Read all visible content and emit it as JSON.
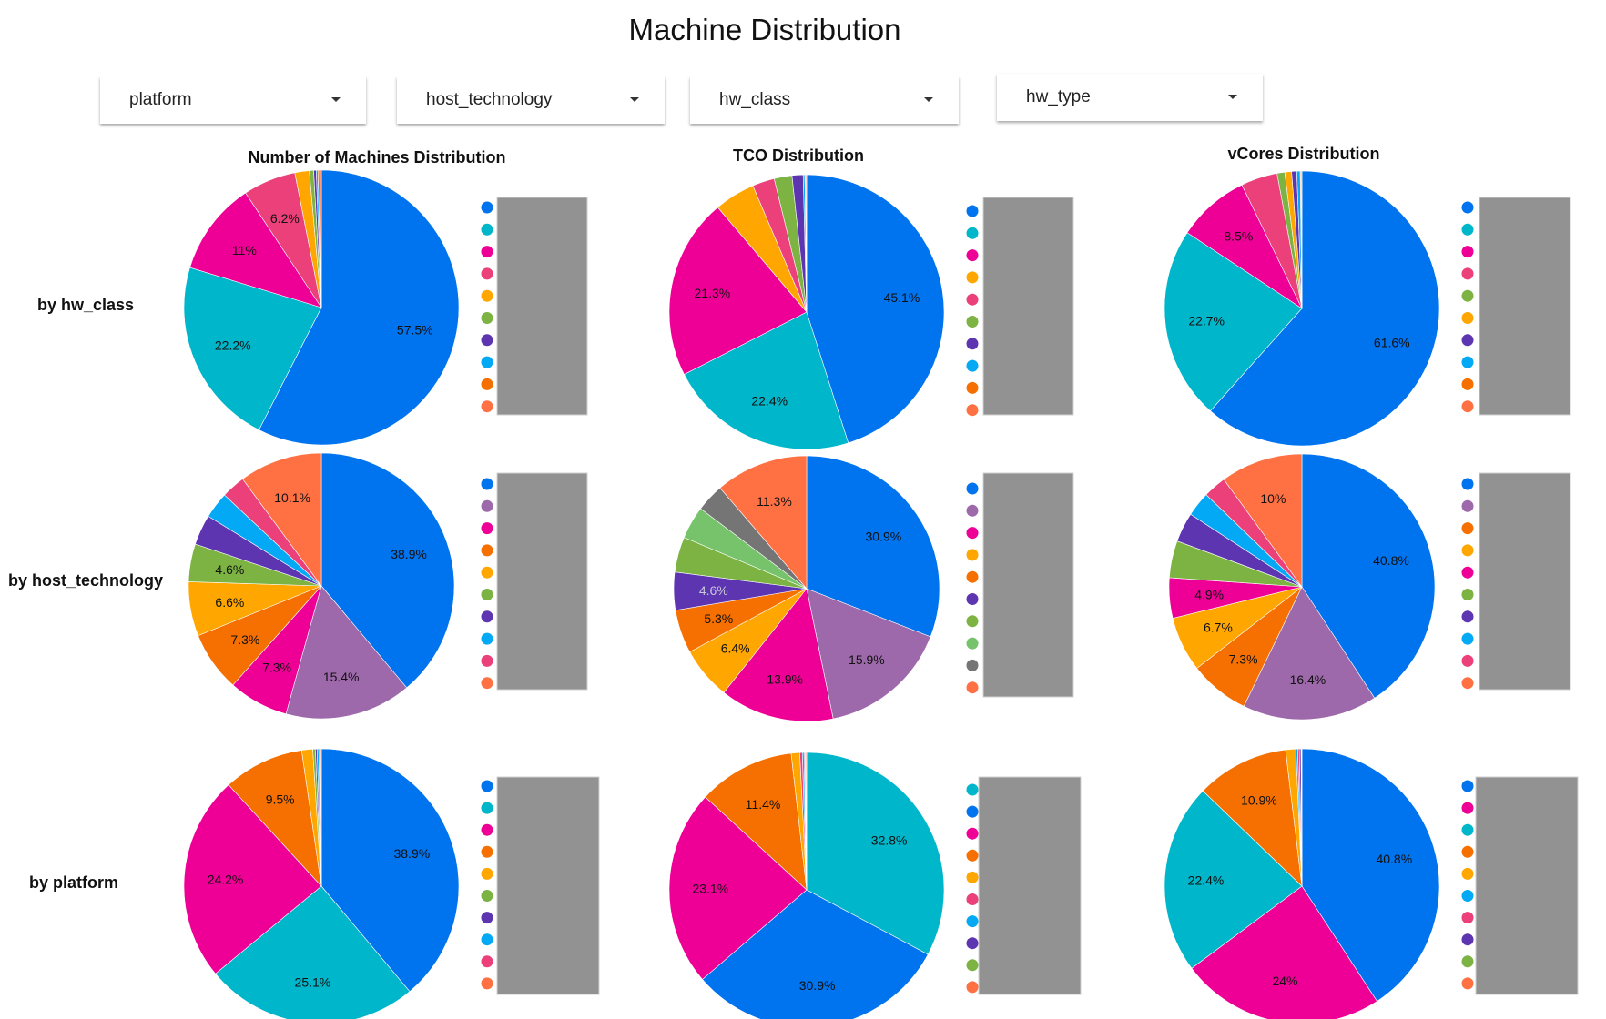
{
  "header": {
    "title": "Machine Distribution"
  },
  "filters": [
    {
      "label": "platform"
    },
    {
      "label": "host_technology"
    },
    {
      "label": "hw_class"
    },
    {
      "label": "hw_type"
    }
  ],
  "columns": [
    {
      "title": "Number of Machines Distribution"
    },
    {
      "title": "TCO Distribution"
    },
    {
      "title": "vCores Distribution"
    }
  ],
  "rows": [
    {
      "label": "by hw_class"
    },
    {
      "label": "by host_technology"
    },
    {
      "label": "by platform"
    }
  ],
  "colors": {
    "blue": "#0073ee",
    "teal": "#00b6ca",
    "pink": "#ee0096",
    "rose": "#ec407a",
    "amber": "#ffa600",
    "green": "#7cb342",
    "purple": "#5e35b1",
    "sky": "#03a9f4",
    "orange": "#f57000",
    "coral": "#ff7043",
    "violet": "#9e69ab",
    "lightgreen": "#77c36c",
    "grey": "#757575",
    "legend_mask": "#929292"
  },
  "chart_data": [
    {
      "type": "pie",
      "title": "Number of Machines Distribution",
      "row": "by hw_class",
      "values": [
        57.5,
        22.2,
        11,
        6.2,
        1.7,
        0.5,
        0.3,
        0.2,
        0.2,
        0.2
      ],
      "labels": [
        "57.5%",
        "22.2%",
        "11%",
        "6.2%",
        "",
        "",
        "",
        "",
        "",
        ""
      ],
      "colors": [
        "blue",
        "teal",
        "pink",
        "rose",
        "amber",
        "green",
        "purple",
        "sky",
        "orange",
        "coral"
      ]
    },
    {
      "type": "pie",
      "title": "TCO Distribution",
      "row": "by hw_class",
      "values": [
        45.1,
        22.4,
        21.3,
        4.8,
        2.6,
        2.1,
        1.3,
        0.2,
        0.1,
        0.1
      ],
      "labels": [
        "45.1%",
        "22.4%",
        "21.3%",
        "",
        "",
        "",
        "",
        "",
        "",
        ""
      ],
      "colors": [
        "blue",
        "teal",
        "pink",
        "amber",
        "rose",
        "green",
        "purple",
        "sky",
        "orange",
        "coral"
      ]
    },
    {
      "type": "pie",
      "title": "vCores Distribution",
      "row": "by hw_class",
      "values": [
        61.6,
        22.7,
        8.5,
        4.3,
        0.9,
        0.8,
        0.6,
        0.4,
        0.1,
        0.1
      ],
      "labels": [
        "61.6%",
        "22.7%",
        "8.5%",
        "",
        "",
        "",
        "",
        "",
        "",
        ""
      ],
      "colors": [
        "blue",
        "teal",
        "pink",
        "rose",
        "green",
        "amber",
        "purple",
        "sky",
        "orange",
        "coral"
      ]
    },
    {
      "type": "pie",
      "title": "Number of Machines Distribution",
      "row": "by host_technology",
      "values": [
        38.9,
        15.4,
        7.3,
        7.3,
        6.6,
        4.6,
        3.7,
        3.2,
        2.9,
        10.1
      ],
      "labels": [
        "38.9%",
        "15.4%",
        "7.3%",
        "7.3%",
        "6.6%",
        "4.6%",
        "",
        "",
        "",
        "10.1%"
      ],
      "colors": [
        "blue",
        "violet",
        "pink",
        "orange",
        "amber",
        "green",
        "purple",
        "sky",
        "rose",
        "coral"
      ]
    },
    {
      "type": "pie",
      "title": "TCO Distribution",
      "row": "by host_technology",
      "values": [
        30.9,
        15.9,
        13.9,
        6.4,
        5.3,
        4.6,
        4.3,
        4.0,
        3.4,
        11.3
      ],
      "labels": [
        "30.9%",
        "15.9%",
        "13.9%",
        "6.4%",
        "5.3%",
        "4.6%",
        "",
        "",
        "",
        "11.3%"
      ],
      "colors": [
        "blue",
        "violet",
        "pink",
        "amber",
        "orange",
        "purple",
        "green",
        "lightgreen",
        "grey",
        "coral"
      ]
    },
    {
      "type": "pie",
      "title": "vCores Distribution",
      "row": "by host_technology",
      "values": [
        40.8,
        16.4,
        7.3,
        6.7,
        4.9,
        4.5,
        3.6,
        3.0,
        2.8,
        10
      ],
      "labels": [
        "40.8%",
        "16.4%",
        "7.3%",
        "6.7%",
        "4.9%",
        "",
        "",
        "",
        "",
        "10%"
      ],
      "colors": [
        "blue",
        "violet",
        "orange",
        "amber",
        "pink",
        "green",
        "purple",
        "sky",
        "rose",
        "coral"
      ]
    },
    {
      "type": "pie",
      "title": "Number of Machines Distribution",
      "row": "by platform",
      "values": [
        38.9,
        25.1,
        24.2,
        9.5,
        1.3,
        0.3,
        0.2,
        0.2,
        0.2,
        0.1
      ],
      "labels": [
        "38.9%",
        "25.1%",
        "24.2%",
        "9.5%",
        "",
        "",
        "",
        "",
        "",
        ""
      ],
      "colors": [
        "blue",
        "teal",
        "pink",
        "orange",
        "amber",
        "green",
        "purple",
        "sky",
        "rose",
        "coral"
      ]
    },
    {
      "type": "pie",
      "title": "TCO Distribution",
      "row": "by platform",
      "values": [
        32.8,
        30.9,
        23.1,
        11.4,
        1.0,
        0.3,
        0.2,
        0.1,
        0.1,
        0.1
      ],
      "labels": [
        "32.8%",
        "30.9%",
        "23.1%",
        "11.4%",
        "",
        "",
        "",
        "",
        "",
        ""
      ],
      "colors": [
        "teal",
        "blue",
        "pink",
        "orange",
        "amber",
        "rose",
        "sky",
        "purple",
        "green",
        "coral"
      ]
    },
    {
      "type": "pie",
      "title": "vCores Distribution",
      "row": "by platform",
      "values": [
        40.8,
        24,
        22.4,
        10.9,
        1.2,
        0.2,
        0.2,
        0.2,
        0.05,
        0.05
      ],
      "labels": [
        "40.8%",
        "24%",
        "22.4%",
        "10.9%",
        "",
        "",
        "",
        "",
        "",
        ""
      ],
      "colors": [
        "blue",
        "pink",
        "teal",
        "orange",
        "amber",
        "sky",
        "rose",
        "purple",
        "green",
        "coral"
      ]
    }
  ]
}
